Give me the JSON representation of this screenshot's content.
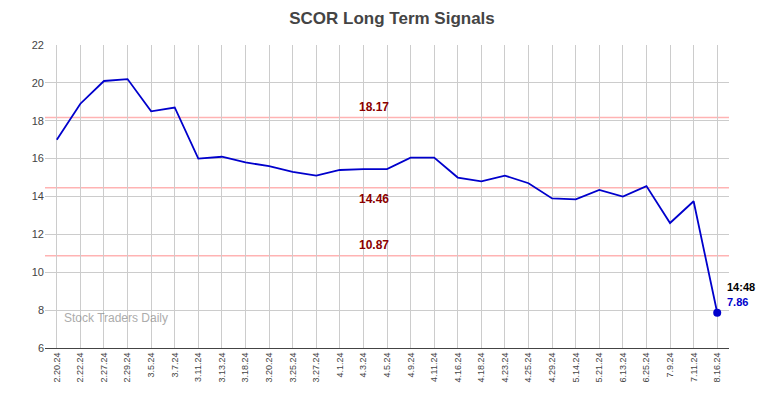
{
  "chart_data": {
    "type": "line",
    "title": "SCOR Long Term Signals",
    "categories": [
      "2.20.24",
      "2.22.24",
      "2.27.24",
      "2.29.24",
      "3.5.24",
      "3.7.24",
      "3.11.24",
      "3.13.24",
      "3.18.24",
      "3.20.24",
      "3.25.24",
      "3.27.24",
      "4.1.24",
      "4.3.24",
      "4.5.24",
      "4.9.24",
      "4.11.24",
      "4.16.24",
      "4.18.24",
      "4.23.24",
      "4.25.24",
      "4.29.24",
      "5.14.24",
      "5.21.24",
      "6.13.24",
      "6.25.24",
      "7.9.24",
      "7.11.24",
      "8.16.24"
    ],
    "values": [
      17.0,
      18.9,
      20.1,
      20.2,
      18.5,
      18.7,
      16.0,
      16.1,
      15.8,
      15.6,
      15.3,
      15.1,
      15.4,
      15.45,
      15.45,
      16.05,
      16.05,
      15.0,
      14.8,
      15.1,
      14.7,
      13.9,
      13.85,
      14.35,
      14.0,
      14.55,
      12.6,
      13.75,
      7.86
    ],
    "color": "#0000cc",
    "marker": "circle",
    "reference_lines": [
      {
        "value": 18.17,
        "color": "#ffb3b3",
        "label_color": "#8b0000"
      },
      {
        "value": 14.46,
        "color": "#ffb3b3",
        "label_color": "#8b0000"
      },
      {
        "value": 10.87,
        "color": "#ffb3b3",
        "label_color": "#8b0000"
      }
    ],
    "annotations": [
      {
        "text": "14:48",
        "color": "#000000"
      },
      {
        "text": "7.86",
        "color": "#0000cc"
      }
    ],
    "watermark": "Stock Traders Daily",
    "ylim": [
      6,
      22
    ],
    "yticks": [
      6,
      8,
      10,
      12,
      14,
      16,
      18,
      20,
      22
    ],
    "grid": true
  }
}
